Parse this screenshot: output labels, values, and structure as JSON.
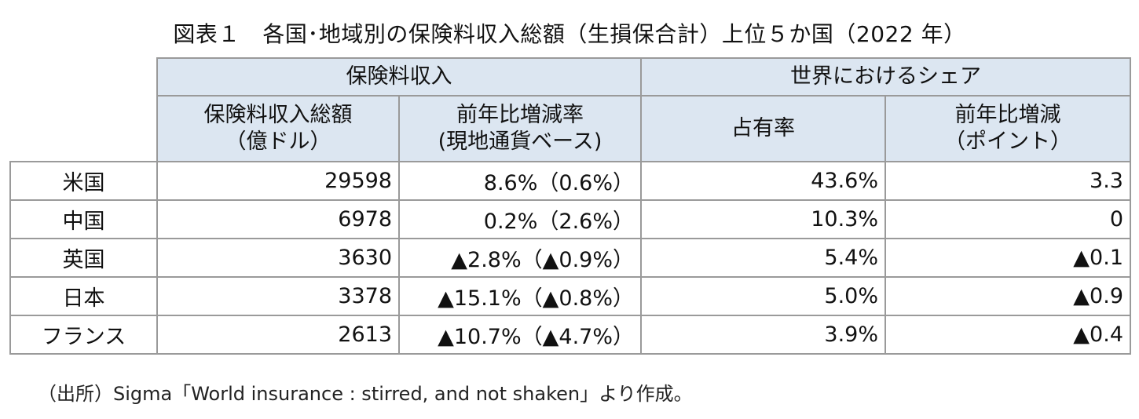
{
  "title": "図表１　各国･地域別の保険料収入総額（生損保合計）上位５か国（2022 年）",
  "table": {
    "group_headers": {
      "premium_income": "保険料収入",
      "world_share": "世界におけるシェア"
    },
    "sub_headers": {
      "total_line1": "保険料収入総額",
      "total_line2": "（億ドル）",
      "growth_line1": "前年比増減率",
      "growth_line2": "(現地通貨ベース)",
      "share": "占有率",
      "share_change_line1": "前年比増減",
      "share_change_line2": "（ポイント）"
    },
    "rows": [
      {
        "country": "米国",
        "total": "29598",
        "growth": "8.6%（0.6%）",
        "share": "43.6%",
        "share_change": "3.3"
      },
      {
        "country": "中国",
        "total": "6978",
        "growth": "0.2%（2.6%）",
        "share": "10.3%",
        "share_change": "0"
      },
      {
        "country": "英国",
        "total": "3630",
        "growth": "▲2.8%（▲0.9%）",
        "share": "5.4%",
        "share_change": "▲0.1"
      },
      {
        "country": "日本",
        "total": "3378",
        "growth": "▲15.1%（▲0.8%）",
        "share": "5.0%",
        "share_change": "▲0.9"
      },
      {
        "country": "フランス",
        "total": "2613",
        "growth": "▲10.7%（▲4.7%）",
        "share": "3.9%",
        "share_change": "▲0.4"
      }
    ]
  },
  "source": "（出所）Sigma「World insurance : stirred, and not shaken」より作成。"
}
